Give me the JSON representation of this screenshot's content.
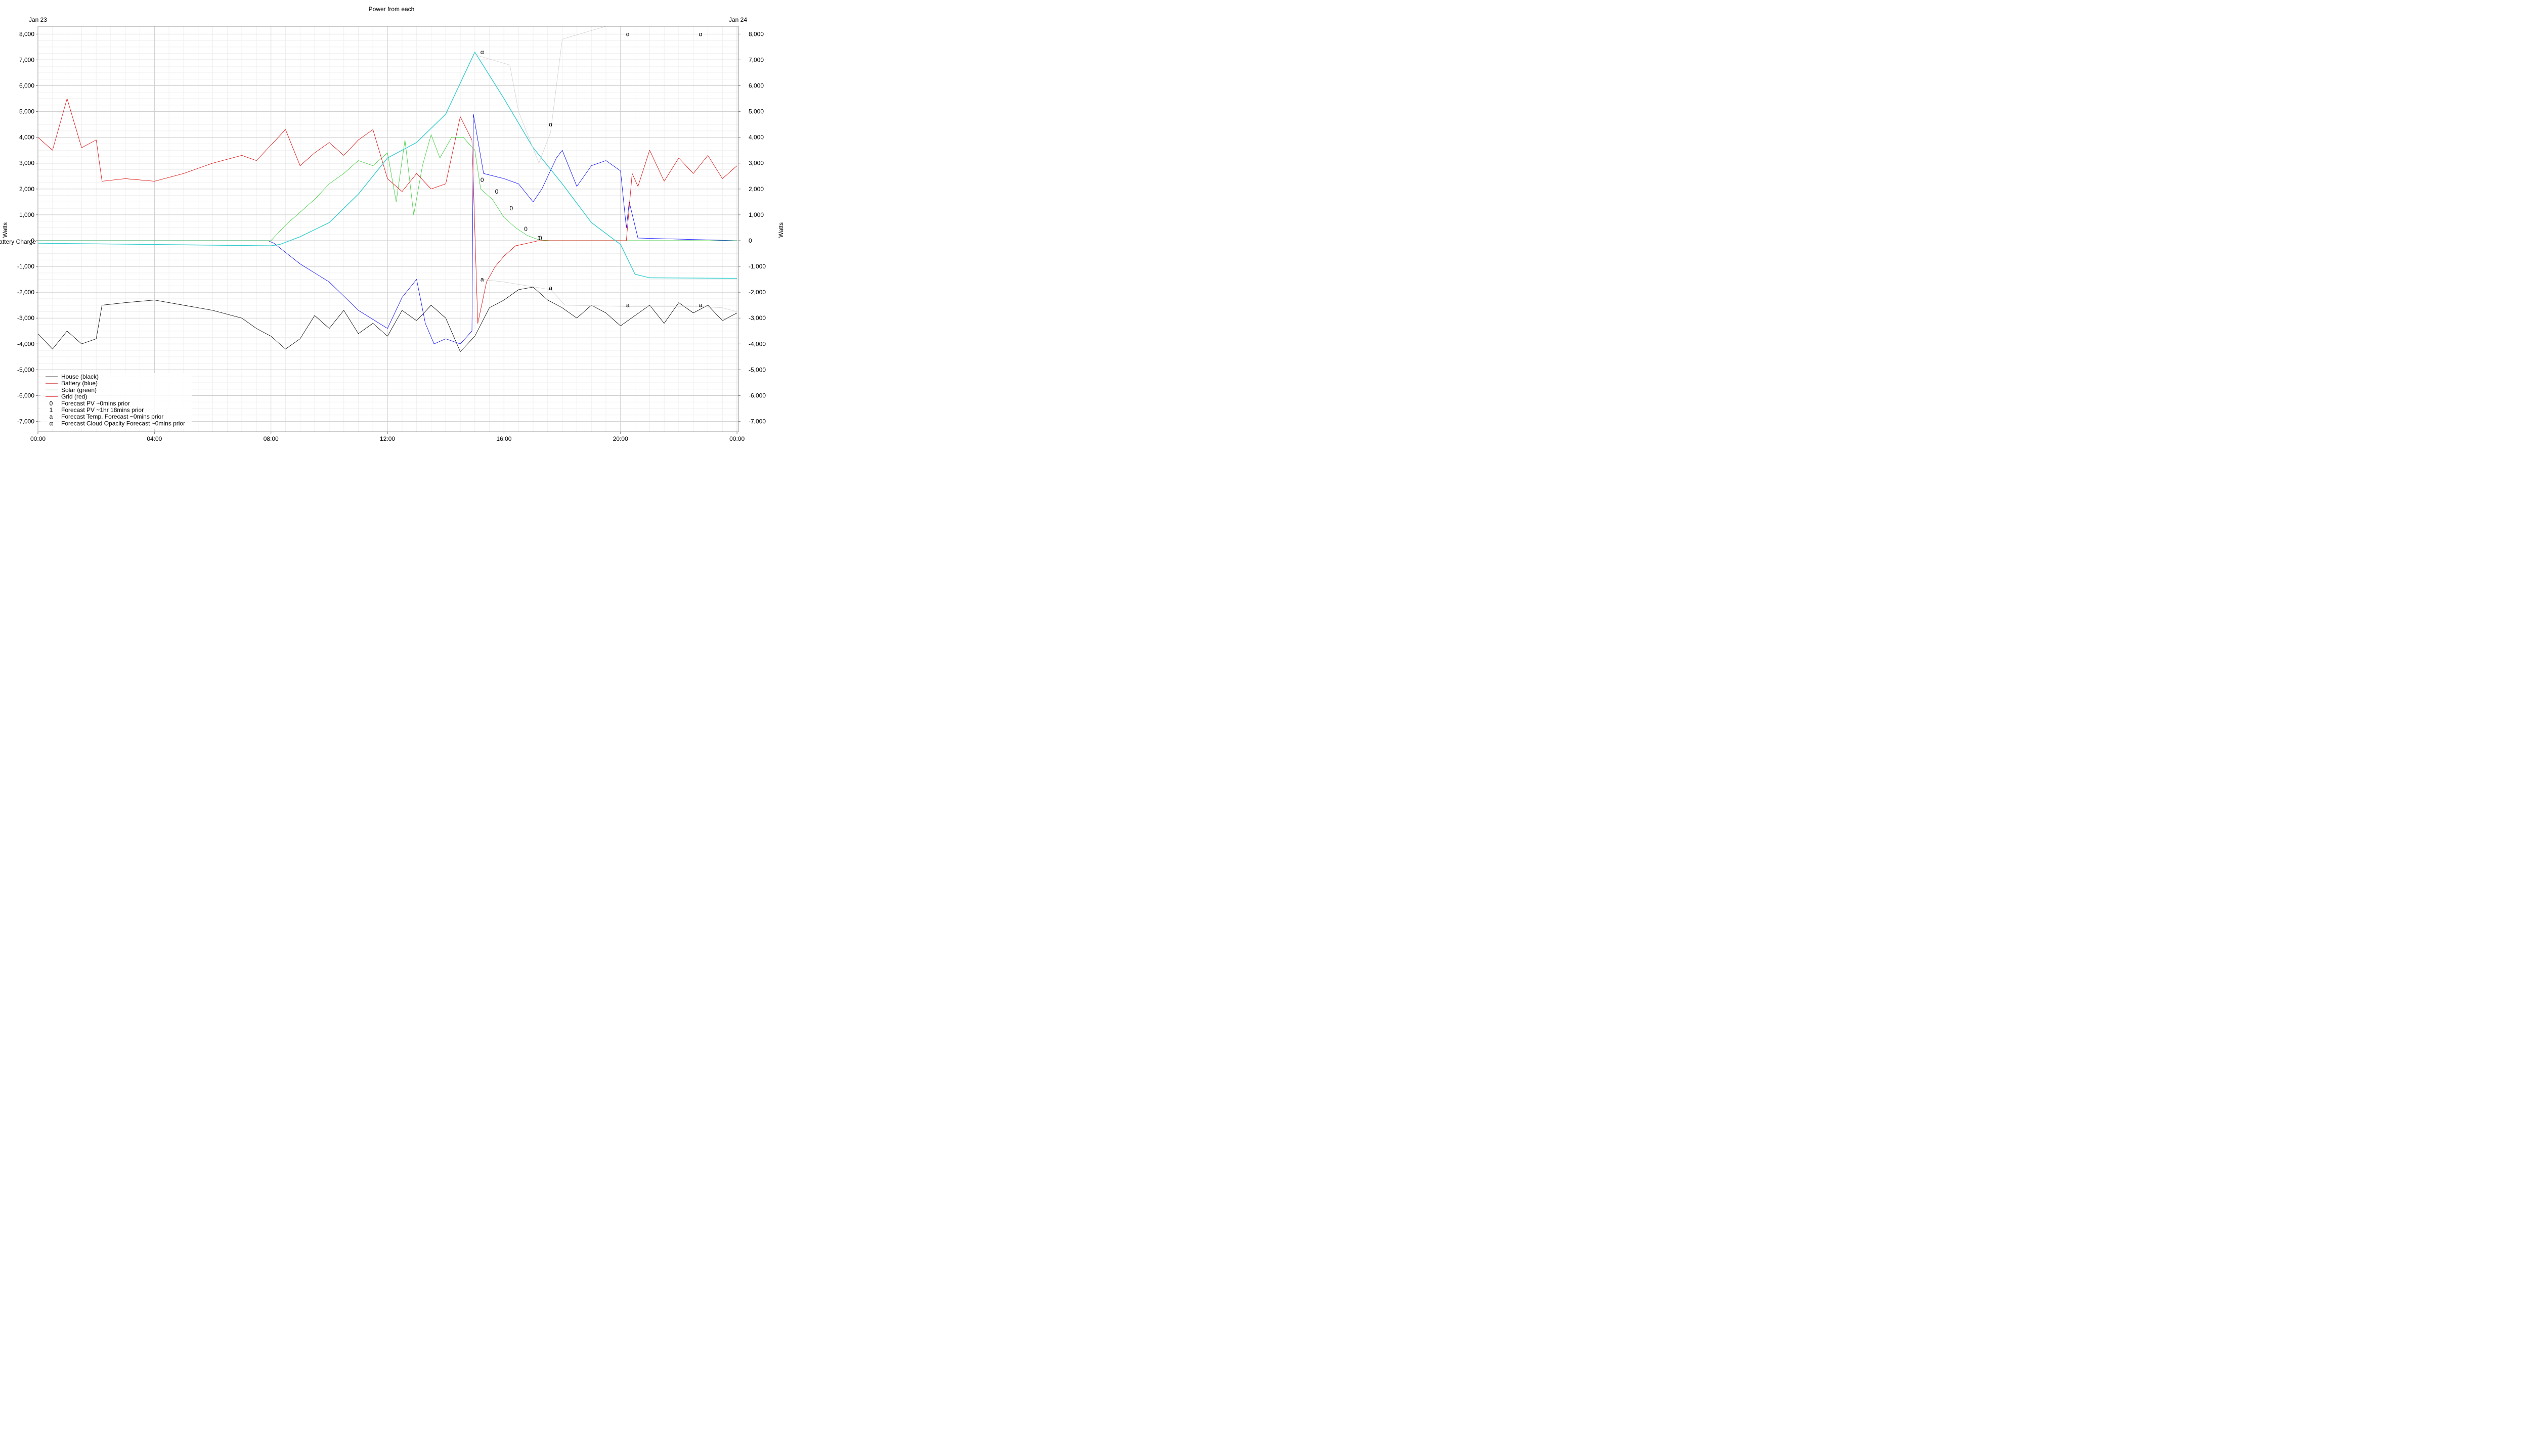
{
  "chart_data": {
    "type": "line",
    "title": "Power from each",
    "date_labels": {
      "start": "Jan 23",
      "end": "Jan 24"
    },
    "ylabel_left": "Watts",
    "ylabel_right": "Watts",
    "ylabel_left_secondary": "Battery Charge",
    "ylim": [
      -7400,
      8300
    ],
    "yticks": [
      -7000,
      -6000,
      -5000,
      -4000,
      -3000,
      -2000,
      -1000,
      0,
      1000,
      2000,
      3000,
      4000,
      5000,
      6000,
      7000,
      8000
    ],
    "ytick_labels": [
      "-7,000",
      "-6,000",
      "-5,000",
      "-4,000",
      "-3,000",
      "-2,000",
      "-1,000",
      "0",
      "1,000",
      "2,000",
      "3,000",
      "4,000",
      "5,000",
      "6,000",
      "7,000",
      "8,000"
    ],
    "xlim_hours": [
      0,
      24.05
    ],
    "xticks_hours": [
      0,
      4,
      8,
      12,
      16,
      20,
      24
    ],
    "xtick_labels": [
      "00:00",
      "04:00",
      "08:00",
      "12:00",
      "16:00",
      "20:00",
      "00:00"
    ],
    "grid": true,
    "legend_position": "bottom-left",
    "legend": [
      {
        "label": "House (black)",
        "marker": "",
        "color": "#555555"
      },
      {
        "label": "Battery (blue)",
        "marker": "",
        "color": "#d04040"
      },
      {
        "label": "Solar (green)",
        "marker": "",
        "color": "#40c040"
      },
      {
        "label": "Grid (red)",
        "marker": "",
        "color": "#e04040"
      },
      {
        "label": "Forecast PV ~0mins prior",
        "marker": "0",
        "color": ""
      },
      {
        "label": "Forecast PV ~1hr 18mins prior",
        "marker": "1",
        "color": ""
      },
      {
        "label": "Forecast Temp. Forecast ~0mins prior",
        "marker": "a",
        "color": ""
      },
      {
        "label": "Forecast Cloud Opacity Forecast ~0mins prior",
        "marker": "α",
        "color": ""
      }
    ],
    "series": [
      {
        "key": "house",
        "color": "#000000",
        "points": [
          [
            0,
            -3600
          ],
          [
            0.5,
            -4200
          ],
          [
            1,
            -3500
          ],
          [
            1.5,
            -4000
          ],
          [
            2,
            -3800
          ],
          [
            2.2,
            -2500
          ],
          [
            3,
            -2400
          ],
          [
            4,
            -2300
          ],
          [
            5,
            -2500
          ],
          [
            6,
            -2700
          ],
          [
            7,
            -3000
          ],
          [
            7.5,
            -3400
          ],
          [
            8,
            -3700
          ],
          [
            8.5,
            -4200
          ],
          [
            9,
            -3800
          ],
          [
            9.5,
            -2900
          ],
          [
            10,
            -3400
          ],
          [
            10.5,
            -2700
          ],
          [
            11,
            -3600
          ],
          [
            11.5,
            -3200
          ],
          [
            12,
            -3700
          ],
          [
            12.5,
            -2700
          ],
          [
            13,
            -3100
          ],
          [
            13.5,
            -2500
          ],
          [
            14,
            -3000
          ],
          [
            14.5,
            -4300
          ],
          [
            15,
            -3700
          ],
          [
            15.5,
            -2600
          ],
          [
            16,
            -2300
          ],
          [
            16.5,
            -1900
          ],
          [
            17,
            -1800
          ],
          [
            17.5,
            -2300
          ],
          [
            18,
            -2600
          ],
          [
            18.5,
            -3000
          ],
          [
            19,
            -2500
          ],
          [
            19.5,
            -2800
          ],
          [
            20,
            -3300
          ],
          [
            20.5,
            -2900
          ],
          [
            21,
            -2500
          ],
          [
            21.5,
            -3200
          ],
          [
            22,
            -2400
          ],
          [
            22.5,
            -2800
          ],
          [
            23,
            -2500
          ],
          [
            23.5,
            -3100
          ],
          [
            24,
            -2800
          ]
        ]
      },
      {
        "key": "battery",
        "color": "#0000ff",
        "points": [
          [
            0,
            0
          ],
          [
            7.9,
            0
          ],
          [
            8.1,
            -100
          ],
          [
            9,
            -900
          ],
          [
            10,
            -1600
          ],
          [
            11,
            -2700
          ],
          [
            12,
            -3400
          ],
          [
            12.5,
            -2200
          ],
          [
            13,
            -1500
          ],
          [
            13.3,
            -3200
          ],
          [
            13.6,
            -4000
          ],
          [
            14,
            -3800
          ],
          [
            14.5,
            -4000
          ],
          [
            14.9,
            -3500
          ],
          [
            14.95,
            4900
          ],
          [
            15.3,
            2600
          ],
          [
            16,
            2400
          ],
          [
            16.5,
            2200
          ],
          [
            17,
            1500
          ],
          [
            17.3,
            2000
          ],
          [
            17.8,
            3200
          ],
          [
            18,
            3500
          ],
          [
            18.5,
            2100
          ],
          [
            19,
            2900
          ],
          [
            19.5,
            3100
          ],
          [
            20,
            2700
          ],
          [
            20.2,
            500
          ],
          [
            20.3,
            1500
          ],
          [
            20.6,
            100
          ],
          [
            24,
            0
          ]
        ]
      },
      {
        "key": "solar",
        "color": "#33cc33",
        "points": [
          [
            0,
            0
          ],
          [
            8,
            0
          ],
          [
            8.5,
            600
          ],
          [
            9,
            1100
          ],
          [
            9.5,
            1600
          ],
          [
            10,
            2200
          ],
          [
            10.5,
            2600
          ],
          [
            11,
            3100
          ],
          [
            11.5,
            2900
          ],
          [
            12,
            3400
          ],
          [
            12.3,
            1500
          ],
          [
            12.6,
            3900
          ],
          [
            12.9,
            1000
          ],
          [
            13.2,
            2900
          ],
          [
            13.5,
            4100
          ],
          [
            13.8,
            3200
          ],
          [
            14.2,
            4000
          ],
          [
            14.6,
            4000
          ],
          [
            15,
            3500
          ],
          [
            15.2,
            2000
          ],
          [
            15.6,
            1600
          ],
          [
            16,
            900
          ],
          [
            16.4,
            500
          ],
          [
            16.8,
            200
          ],
          [
            17.2,
            30
          ],
          [
            17.6,
            0
          ],
          [
            24,
            0
          ]
        ]
      },
      {
        "key": "grid",
        "color": "#dd0000",
        "points": [
          [
            0,
            4000
          ],
          [
            0.5,
            3500
          ],
          [
            1,
            5500
          ],
          [
            1.5,
            3600
          ],
          [
            2,
            3900
          ],
          [
            2.2,
            2300
          ],
          [
            3,
            2400
          ],
          [
            4,
            2300
          ],
          [
            5,
            2600
          ],
          [
            6,
            3000
          ],
          [
            7,
            3300
          ],
          [
            7.5,
            3100
          ],
          [
            8,
            3700
          ],
          [
            8.5,
            4300
          ],
          [
            9,
            2900
          ],
          [
            9.5,
            3400
          ],
          [
            10,
            3800
          ],
          [
            10.5,
            3300
          ],
          [
            11,
            3900
          ],
          [
            11.5,
            4300
          ],
          [
            12,
            2400
          ],
          [
            12.5,
            1900
          ],
          [
            13,
            2600
          ],
          [
            13.5,
            2000
          ],
          [
            14,
            2200
          ],
          [
            14.5,
            4800
          ],
          [
            14.9,
            3900
          ],
          [
            15.1,
            -3200
          ],
          [
            15.4,
            -1600
          ],
          [
            15.7,
            -1000
          ],
          [
            16,
            -600
          ],
          [
            16.4,
            -200
          ],
          [
            16.8,
            -100
          ],
          [
            17.2,
            0
          ],
          [
            20.2,
            0
          ],
          [
            20.4,
            2600
          ],
          [
            20.6,
            2100
          ],
          [
            21,
            3500
          ],
          [
            21.5,
            2300
          ],
          [
            22,
            3200
          ],
          [
            22.5,
            2600
          ],
          [
            23,
            3300
          ],
          [
            23.5,
            2400
          ],
          [
            24,
            2900
          ]
        ]
      },
      {
        "key": "battery_charge",
        "color": "#33cccc",
        "points": [
          [
            0,
            -100
          ],
          [
            8,
            -200
          ],
          [
            8.3,
            -150
          ],
          [
            9,
            150
          ],
          [
            10,
            700
          ],
          [
            11,
            1800
          ],
          [
            12,
            3200
          ],
          [
            13,
            3800
          ],
          [
            14,
            4900
          ],
          [
            15,
            7300
          ],
          [
            15.5,
            6400
          ],
          [
            16,
            5500
          ],
          [
            17,
            3600
          ],
          [
            18,
            2200
          ],
          [
            19,
            700
          ],
          [
            20,
            -150
          ],
          [
            20.5,
            -1300
          ],
          [
            21,
            -1440
          ],
          [
            24,
            -1460
          ]
        ]
      },
      {
        "key": "cloud_forecast",
        "color": "#d0d0d0",
        "points": [
          [
            15,
            7200
          ],
          [
            16.2,
            6800
          ],
          [
            16.5,
            5000
          ],
          [
            17.2,
            3000
          ],
          [
            17.6,
            4200
          ],
          [
            18,
            7800
          ],
          [
            18.6,
            8000
          ],
          [
            19.5,
            8300
          ]
        ]
      },
      {
        "key": "temp_forecast",
        "color": "#d0d0d0",
        "points": [
          [
            15.2,
            -1500
          ],
          [
            16,
            -1600
          ],
          [
            17.6,
            -1900
          ],
          [
            18.1,
            -2500
          ],
          [
            20.2,
            -2550
          ],
          [
            22.7,
            -2550
          ],
          [
            23.5,
            -2600
          ],
          [
            24,
            -2750
          ]
        ]
      }
    ],
    "forecast_markers": [
      {
        "symbol": "α",
        "x": 15.25,
        "y": 7300
      },
      {
        "symbol": "α",
        "x": 17.6,
        "y": 4500
      },
      {
        "symbol": "α",
        "x": 20.25,
        "y": 8000
      },
      {
        "symbol": "α",
        "x": 22.75,
        "y": 8000
      },
      {
        "symbol": "0",
        "x": 15.25,
        "y": 2350
      },
      {
        "symbol": "0",
        "x": 15.75,
        "y": 1900
      },
      {
        "symbol": "0",
        "x": 16.25,
        "y": 1250
      },
      {
        "symbol": "0",
        "x": 16.75,
        "y": 450
      },
      {
        "symbol": "0",
        "x": 17.25,
        "y": 100
      },
      {
        "symbol": "1",
        "x": 17.2,
        "y": 100
      },
      {
        "symbol": "a",
        "x": 15.25,
        "y": -1500
      },
      {
        "symbol": "a",
        "x": 17.6,
        "y": -1830
      },
      {
        "symbol": "a",
        "x": 20.25,
        "y": -2500
      },
      {
        "symbol": "a",
        "x": 22.75,
        "y": -2500
      }
    ]
  }
}
